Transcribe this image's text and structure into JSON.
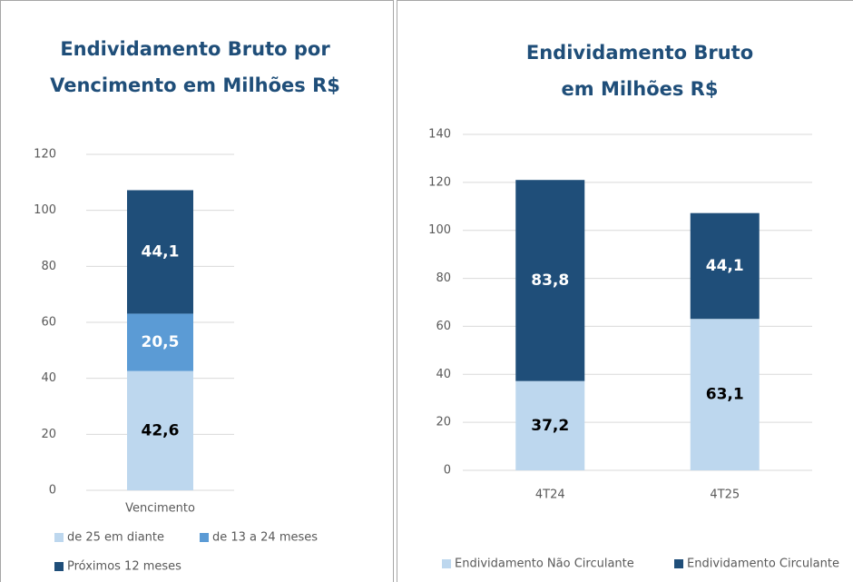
{
  "chart_data": [
    {
      "type": "stacked_bar",
      "title": "Endividamento Bruto por Vencimento em Milhões R$",
      "categories": [
        "Vencimento"
      ],
      "series": [
        {
          "name": "de 25 em diante",
          "color": "#bdd7ee",
          "label_color": "#000000",
          "values": [
            42.6
          ],
          "value_labels": [
            "42,6"
          ]
        },
        {
          "name": "de 13 a 24 meses",
          "color": "#5b9bd5",
          "label_color": "#ffffff",
          "values": [
            20.5
          ],
          "value_labels": [
            "20,5"
          ]
        },
        {
          "name": "Próximos 12 meses",
          "color": "#1f4e79",
          "label_color": "#ffffff",
          "values": [
            44.1
          ],
          "value_labels": [
            "44,1"
          ]
        }
      ],
      "ylim": [
        0,
        120
      ],
      "yticks": [
        0,
        20,
        40,
        60,
        80,
        100,
        120
      ],
      "grid": true,
      "legend": "bottom"
    },
    {
      "type": "stacked_bar",
      "title": "Endividamento Bruto em Milhões R$",
      "categories": [
        "4T24",
        "4T25"
      ],
      "series": [
        {
          "name": "Endividamento Não Circulante",
          "color": "#bdd7ee",
          "label_color": "#000000",
          "values": [
            37.2,
            63.1
          ],
          "value_labels": [
            "37,2",
            "63,1"
          ]
        },
        {
          "name": "Endividamento Circulante",
          "color": "#1f4e79",
          "label_color": "#ffffff",
          "values": [
            83.8,
            44.1
          ],
          "value_labels": [
            "83,8",
            "44,1"
          ]
        }
      ],
      "ylim": [
        0,
        140
      ],
      "yticks": [
        0,
        20,
        40,
        60,
        80,
        100,
        120,
        140
      ],
      "grid": true,
      "legend": "bottom"
    }
  ]
}
